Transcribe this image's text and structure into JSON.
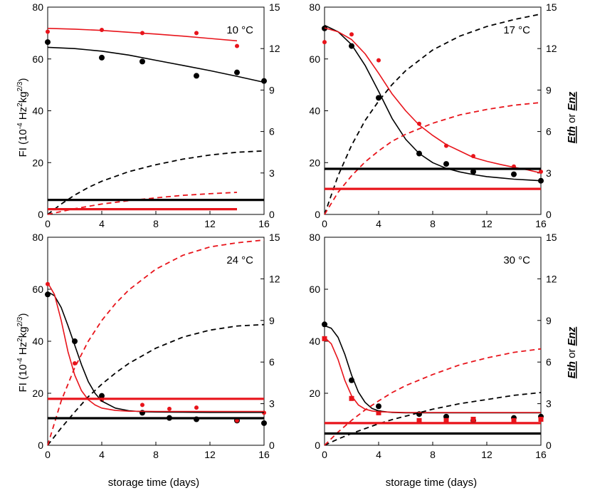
{
  "colors": {
    "black": "#000000",
    "red": "#e8141b"
  },
  "labels": {
    "x": "storage time (days)",
    "y_left": [
      "FI (10",
      "-4",
      " Hz",
      "2",
      "kg",
      "2/3",
      ")"
    ],
    "y_right": [
      "Eth",
      " or ",
      "Enz"
    ]
  },
  "chart_data": [
    {
      "type": "scatter",
      "title": "10 °C",
      "xlim": [
        0,
        16
      ],
      "ylim_left": [
        0,
        80
      ],
      "ylim_right": [
        0,
        15
      ],
      "xticks": [
        "0",
        "4",
        "8",
        "12",
        "16"
      ],
      "yticks_left": [
        "0",
        "20",
        "40",
        "60",
        "80"
      ],
      "yticks_right": [
        "0",
        "3",
        "6",
        "9",
        "12",
        "15"
      ],
      "series": [
        {
          "name": "FI black points",
          "color": "black",
          "kind": "points",
          "x": [
            0,
            4,
            7,
            11,
            14,
            16
          ],
          "y": [
            66.5,
            60.5,
            59,
            53.5,
            54.8,
            51.5
          ]
        },
        {
          "name": "FI red points",
          "color": "red",
          "kind": "points",
          "x": [
            0,
            4,
            7,
            11,
            14
          ],
          "y": [
            70.5,
            71.2,
            70,
            70,
            65
          ]
        },
        {
          "name": "FI black fit",
          "color": "black",
          "kind": "solid",
          "x": [
            0,
            2,
            4,
            6,
            8,
            10,
            12,
            14,
            16
          ],
          "y": [
            64.5,
            64,
            63,
            61.5,
            59.5,
            57.5,
            55.5,
            53.3,
            51
          ]
        },
        {
          "name": "FI red fit",
          "color": "red",
          "kind": "solid",
          "x": [
            0,
            2,
            4,
            6,
            8,
            10,
            12,
            14
          ],
          "y": [
            71.8,
            71.5,
            71,
            70.3,
            69.6,
            68.8,
            67.9,
            67
          ]
        },
        {
          "name": "Eth black",
          "color": "black",
          "kind": "dashed",
          "axis": "right",
          "x": [
            0,
            1,
            2,
            3,
            4,
            6,
            8,
            10,
            12,
            14,
            16
          ],
          "y": [
            0,
            0.75,
            1.4,
            1.95,
            2.4,
            3.1,
            3.6,
            4.0,
            4.3,
            4.5,
            4.6
          ]
        },
        {
          "name": "Eth red",
          "color": "red",
          "kind": "dashed",
          "axis": "right",
          "x": [
            0,
            2,
            4,
            6,
            8,
            10,
            12,
            14
          ],
          "y": [
            0,
            0.42,
            0.75,
            1.0,
            1.2,
            1.38,
            1.5,
            1.6
          ]
        },
        {
          "name": "Enz black",
          "color": "black",
          "kind": "thick",
          "axis": "right",
          "x": [
            0,
            16
          ],
          "y": [
            1.05,
            1.05
          ]
        },
        {
          "name": "Enz red",
          "color": "red",
          "kind": "thick",
          "axis": "right",
          "x": [
            0,
            14
          ],
          "y": [
            0.38,
            0.38
          ]
        }
      ]
    },
    {
      "type": "scatter",
      "title": "17 °C",
      "xlim": [
        0,
        16
      ],
      "ylim_left": [
        0,
        80
      ],
      "ylim_right": [
        0,
        15
      ],
      "xticks": [
        "0",
        "4",
        "8",
        "12",
        "16"
      ],
      "yticks_left": [
        "0",
        "20",
        "40",
        "60",
        "80"
      ],
      "yticks_right": [
        "0",
        "3",
        "6",
        "9",
        "12",
        "15"
      ],
      "series": [
        {
          "name": "FI black points",
          "color": "black",
          "kind": "points",
          "x": [
            0,
            2,
            4,
            7,
            9,
            11,
            14,
            16
          ],
          "y": [
            71.8,
            65,
            45,
            23.5,
            19.5,
            16.5,
            15.5,
            13
          ]
        },
        {
          "name": "FI red points",
          "color": "red",
          "kind": "points",
          "x": [
            0,
            2,
            4,
            7,
            9,
            11,
            14,
            16
          ],
          "y": [
            66.5,
            69.5,
            59.5,
            35,
            26.5,
            22.5,
            18.5,
            16.5
          ]
        },
        {
          "name": "FI black fit",
          "color": "black",
          "kind": "solid",
          "x": [
            0,
            1,
            2,
            3,
            4,
            5,
            6,
            7,
            8,
            9,
            10,
            11,
            12,
            13,
            14,
            15,
            16
          ],
          "y": [
            73,
            70.5,
            65.5,
            57.5,
            47.5,
            37,
            29,
            23.5,
            20,
            17.8,
            16.4,
            15.4,
            14.6,
            14.1,
            13.6,
            13.3,
            13
          ]
        },
        {
          "name": "FI red fit",
          "color": "red",
          "kind": "solid",
          "x": [
            0,
            1,
            2,
            3,
            4,
            5,
            6,
            7,
            8,
            9,
            10,
            11,
            12,
            13,
            14,
            15,
            16
          ],
          "y": [
            72,
            70.5,
            67.5,
            62,
            54.5,
            46.5,
            40,
            34.5,
            30.5,
            27,
            24.5,
            22,
            20.5,
            19.3,
            18.2,
            17.2,
            16
          ]
        },
        {
          "name": "Eth black",
          "color": "black",
          "kind": "dashed",
          "axis": "right",
          "x": [
            0,
            1,
            2,
            3,
            4,
            5,
            6,
            8,
            10,
            12,
            14,
            16
          ],
          "y": [
            0,
            2.8,
            5.0,
            6.8,
            8.2,
            9.4,
            10.4,
            11.9,
            12.9,
            13.6,
            14.1,
            14.5
          ]
        },
        {
          "name": "Eth red",
          "color": "red",
          "kind": "dashed",
          "axis": "right",
          "x": [
            0,
            1,
            2,
            3,
            4,
            5,
            6,
            8,
            10,
            12,
            14,
            16
          ],
          "y": [
            0,
            1.6,
            2.8,
            3.8,
            4.6,
            5.3,
            5.8,
            6.6,
            7.2,
            7.6,
            7.9,
            8.1
          ]
        },
        {
          "name": "Enz black",
          "color": "black",
          "kind": "thick",
          "axis": "right",
          "x": [
            0,
            16
          ],
          "y": [
            3.3,
            3.3
          ]
        },
        {
          "name": "Enz red",
          "color": "red",
          "kind": "thick",
          "axis": "right",
          "x": [
            0,
            16
          ],
          "y": [
            1.85,
            1.85
          ]
        }
      ]
    },
    {
      "type": "scatter",
      "title": "24 °C",
      "xlim": [
        0,
        16
      ],
      "ylim_left": [
        0,
        80
      ],
      "ylim_right": [
        0,
        15
      ],
      "xticks": [
        "0",
        "4",
        "8",
        "12",
        "16"
      ],
      "yticks_left": [
        "0",
        "20",
        "40",
        "60",
        "80"
      ],
      "yticks_right": [
        "0",
        "3",
        "6",
        "9",
        "12",
        "15"
      ],
      "series": [
        {
          "name": "FI black points",
          "color": "black",
          "kind": "points",
          "x": [
            0,
            2,
            4,
            7,
            9,
            11,
            14,
            16
          ],
          "y": [
            58,
            40,
            19,
            12.5,
            10.5,
            10,
            9.5,
            8.5
          ]
        },
        {
          "name": "FI red points",
          "color": "red",
          "kind": "points",
          "x": [
            0,
            2,
            4,
            7,
            9,
            11,
            14,
            16
          ],
          "y": [
            62,
            31.5,
            17.5,
            15.5,
            14,
            14.5,
            9.5,
            12.5
          ]
        },
        {
          "name": "FI black fit",
          "color": "black",
          "kind": "solid",
          "x": [
            0,
            0.5,
            1,
            1.5,
            2,
            2.5,
            3,
            3.5,
            4,
            5,
            6,
            7,
            8,
            10,
            12,
            14,
            16
          ],
          "y": [
            59,
            57.5,
            53,
            46,
            38.5,
            31,
            24.5,
            20,
            17,
            14.3,
            13.3,
            12.9,
            12.8,
            12.7,
            12.6,
            12.6,
            12.6
          ]
        },
        {
          "name": "FI red fit",
          "color": "red",
          "kind": "solid",
          "x": [
            0,
            0.5,
            1,
            1.5,
            2,
            2.5,
            3,
            3.5,
            4,
            5,
            6,
            8,
            10,
            12,
            14,
            16
          ],
          "y": [
            62.5,
            58,
            48,
            36,
            27,
            21,
            17.5,
            15.5,
            14.3,
            13.4,
            13.1,
            13,
            13,
            13,
            13,
            13
          ]
        },
        {
          "name": "Eth black",
          "color": "black",
          "kind": "dashed",
          "axis": "right",
          "x": [
            0,
            1,
            2,
            3,
            4,
            5,
            6,
            8,
            10,
            12,
            14,
            16
          ],
          "y": [
            0,
            1.25,
            2.4,
            3.5,
            4.4,
            5.2,
            5.9,
            7.0,
            7.8,
            8.3,
            8.6,
            8.7
          ]
        },
        {
          "name": "Eth red",
          "color": "red",
          "kind": "dashed",
          "axis": "right",
          "x": [
            0,
            1,
            2,
            3,
            4,
            5,
            6,
            8,
            10,
            12,
            14,
            16
          ],
          "y": [
            0,
            3.2,
            5.6,
            7.5,
            9.0,
            10.2,
            11.2,
            12.7,
            13.7,
            14.3,
            14.6,
            14.8
          ]
        },
        {
          "name": "Enz black",
          "color": "black",
          "kind": "thick",
          "axis": "right",
          "x": [
            0,
            16
          ],
          "y": [
            1.95,
            1.95
          ]
        },
        {
          "name": "Enz red",
          "color": "red",
          "kind": "thick",
          "axis": "right",
          "x": [
            0,
            16
          ],
          "y": [
            3.35,
            3.35
          ]
        }
      ]
    },
    {
      "type": "scatter",
      "title": "30 °C",
      "xlim": [
        0,
        16
      ],
      "ylim_left": [
        0,
        80
      ],
      "ylim_right": [
        0,
        15
      ],
      "xticks": [
        "0",
        "4",
        "8",
        "12",
        "16"
      ],
      "yticks_left": [
        "0",
        "20",
        "40",
        "60",
        "80"
      ],
      "yticks_right": [
        "0",
        "3",
        "6",
        "9",
        "12",
        "15"
      ],
      "series": [
        {
          "name": "FI black points",
          "color": "black",
          "kind": "points",
          "x": [
            0,
            2,
            4,
            7,
            9,
            11,
            14,
            16
          ],
          "y": [
            46.5,
            25,
            15,
            12,
            11,
            9.5,
            10.5,
            11
          ]
        },
        {
          "name": "FI red squares",
          "color": "red",
          "kind": "squares",
          "x": [
            0,
            2,
            4,
            7,
            9,
            11,
            14,
            16
          ],
          "y": [
            41,
            18,
            12.5,
            9.5,
            9.5,
            10,
            9.5,
            10
          ]
        },
        {
          "name": "FI black fit",
          "color": "black",
          "kind": "solid",
          "x": [
            0,
            0.5,
            1,
            1.5,
            2,
            2.5,
            3,
            3.5,
            4,
            5,
            6,
            8,
            10,
            12,
            14,
            16
          ],
          "y": [
            46,
            45,
            41.5,
            35,
            27,
            20.5,
            16.5,
            14.2,
            13.2,
            12.6,
            12.5,
            12.5,
            12.5,
            12.5,
            12.5,
            12.5
          ]
        },
        {
          "name": "FI red fit",
          "color": "red",
          "kind": "solid",
          "x": [
            0,
            0.5,
            1,
            1.5,
            2,
            2.5,
            3,
            3.5,
            4,
            5,
            6,
            8,
            10,
            12,
            14,
            16
          ],
          "y": [
            41.5,
            39,
            33,
            25,
            19,
            15.5,
            13.9,
            13.2,
            12.9,
            12.7,
            12.6,
            12.6,
            12.6,
            12.6,
            12.6,
            12.6
          ]
        },
        {
          "name": "Eth black",
          "color": "black",
          "kind": "dashed",
          "axis": "right",
          "x": [
            0,
            1,
            2,
            3,
            4,
            5,
            6,
            8,
            10,
            12,
            14,
            16
          ],
          "y": [
            0,
            0.45,
            0.85,
            1.2,
            1.55,
            1.85,
            2.1,
            2.6,
            3.0,
            3.3,
            3.6,
            3.8
          ]
        },
        {
          "name": "Eth red",
          "color": "red",
          "kind": "dashed",
          "axis": "right",
          "x": [
            0,
            1,
            2,
            3,
            4,
            5,
            6,
            8,
            10,
            12,
            14,
            16
          ],
          "y": [
            0,
            0.95,
            1.8,
            2.55,
            3.2,
            3.8,
            4.3,
            5.1,
            5.8,
            6.3,
            6.7,
            6.95
          ]
        },
        {
          "name": "Enz black",
          "color": "black",
          "kind": "thick",
          "axis": "right",
          "x": [
            0,
            16
          ],
          "y": [
            0.85,
            0.85
          ]
        },
        {
          "name": "Enz red",
          "color": "red",
          "kind": "thick",
          "axis": "right",
          "x": [
            0,
            16
          ],
          "y": [
            1.6,
            1.6
          ]
        }
      ]
    }
  ]
}
